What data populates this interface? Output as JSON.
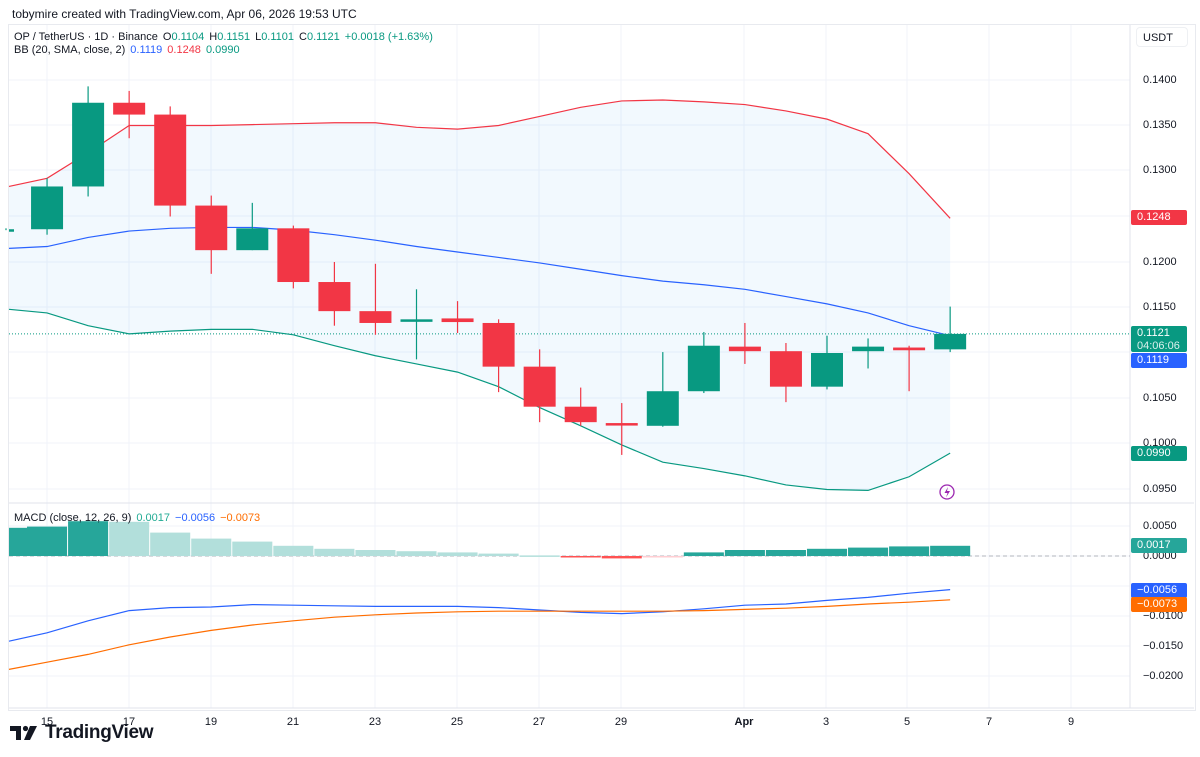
{
  "header": {
    "credit": "tobymire created with TradingView.com, Apr 06, 2026 19:53 UTC"
  },
  "legend": {
    "symbol": "OP / TetherUS · 1D · Binance",
    "o_label": "O",
    "o_value": "0.1104",
    "h_label": "H",
    "h_value": "0.1151",
    "l_label": "L",
    "l_value": "0.1101",
    "c_label": "C",
    "c_value": "0.1121",
    "change": "+0.0018 (+1.63%)",
    "bb_label": "BB (20, SMA, close, 2)",
    "bb_basis": "0.1119",
    "bb_upper": "0.1248",
    "bb_lower": "0.0990",
    "macd_label": "MACD (close, 12, 26, 9)",
    "macd_hist": "0.0017",
    "macd_line": "−0.0056",
    "macd_signal": "−0.0073"
  },
  "price_axis": {
    "currency_button": "USDT",
    "ticks": [
      "0.1400",
      "0.1350",
      "0.1300",
      "0.1200",
      "0.1150",
      "0.1050",
      "0.1000",
      "0.0950"
    ],
    "tags": {
      "upper": "0.1248",
      "last": "0.1121",
      "countdown": "04:06:06",
      "basis": "0.1119",
      "lower": "0.0990"
    }
  },
  "macd_axis": {
    "ticks": [
      "0.0050",
      "0.0000",
      "−0.0100",
      "−0.0150",
      "−0.0200"
    ],
    "tags": {
      "hist": "0.0017",
      "macd": "−0.0056",
      "signal": "−0.0073"
    }
  },
  "time_axis": {
    "labels": [
      "15",
      "17",
      "19",
      "21",
      "23",
      "25",
      "27",
      "29",
      "Apr",
      "3",
      "5",
      "7",
      "9"
    ]
  },
  "branding": {
    "logo_text": "TradingView"
  },
  "colors": {
    "up": "#089981",
    "down": "#f23645",
    "bb_basis": "#2962ff",
    "bb_upper": "#f23645",
    "bb_lower": "#089981",
    "bb_fill": "#2196f3",
    "macd": "#2962ff",
    "signal": "#ff6d00",
    "hist_pos_strong": "#26a69a",
    "hist_pos_weak": "#b2dfdb",
    "hist_neg_strong": "#ff5252",
    "hist_neg_weak": "#ffcdd2"
  },
  "chart_data": [
    {
      "type": "candlestick",
      "title": "OP / TetherUS · 1D · Binance",
      "ylabel": "USDT",
      "ylim": [
        0.093,
        0.142
      ],
      "grid": true,
      "x": [
        "Mar 14",
        "Mar 15",
        "Mar 16",
        "Mar 17",
        "Mar 18",
        "Mar 19",
        "Mar 20",
        "Mar 21",
        "Mar 22",
        "Mar 23",
        "Mar 24",
        "Mar 25",
        "Mar 26",
        "Mar 27",
        "Mar 28",
        "Mar 29",
        "Mar 30",
        "Mar 31",
        "Apr 1",
        "Apr 2",
        "Apr 3",
        "Apr 4",
        "Apr 5",
        "Apr 6"
      ],
      "open": [
        0.1236,
        0.1236,
        0.1283,
        0.1375,
        0.1362,
        0.1262,
        0.1213,
        0.1237,
        0.1178,
        0.1146,
        0.1135,
        0.1138,
        0.1133,
        0.1085,
        0.1041,
        0.1023,
        0.102,
        0.1058,
        0.1107,
        0.1102,
        0.1063,
        0.1102,
        0.1106,
        0.1104
      ],
      "high": [
        0.1237,
        0.1292,
        0.1393,
        0.1388,
        0.1371,
        0.1273,
        0.1265,
        0.124,
        0.12,
        0.1198,
        0.117,
        0.1157,
        0.1137,
        0.1104,
        0.1062,
        0.1045,
        0.1101,
        0.1123,
        0.1133,
        0.1111,
        0.1119,
        0.1116,
        0.1108,
        0.1151
      ],
      "low": [
        0.1235,
        0.123,
        0.1272,
        0.1336,
        0.125,
        0.1187,
        0.1213,
        0.1171,
        0.113,
        0.112,
        0.1093,
        0.1122,
        0.1057,
        0.1024,
        0.102,
        0.0988,
        0.1019,
        0.1056,
        0.1088,
        0.1046,
        0.106,
        0.1083,
        0.1058,
        0.1101
      ],
      "close": [
        0.1236,
        0.1283,
        0.1375,
        0.1362,
        0.1262,
        0.1213,
        0.1237,
        0.1178,
        0.1146,
        0.1133,
        0.1137,
        0.1134,
        0.1085,
        0.1041,
        0.1024,
        0.1021,
        0.1058,
        0.1108,
        0.1102,
        0.1063,
        0.11,
        0.1107,
        0.1103,
        0.1121
      ],
      "series": [
        {
          "name": "BB Upper",
          "values": [
            0.1283,
            0.1292,
            0.132,
            0.135,
            0.135,
            0.135,
            0.1351,
            0.1352,
            0.1353,
            0.1353,
            0.1348,
            0.1346,
            0.135,
            0.136,
            0.137,
            0.1377,
            0.1378,
            0.1376,
            0.1373,
            0.1366,
            0.1357,
            0.1341,
            0.1297,
            0.1248
          ]
        },
        {
          "name": "BB Basis",
          "values": [
            0.1215,
            0.1217,
            0.1227,
            0.1234,
            0.1237,
            0.1238,
            0.1238,
            0.1235,
            0.123,
            0.1224,
            0.1217,
            0.1211,
            0.1205,
            0.1199,
            0.1192,
            0.1185,
            0.1179,
            0.1175,
            0.117,
            0.1162,
            0.1154,
            0.1144,
            0.113,
            0.1119
          ]
        },
        {
          "name": "BB Lower",
          "values": [
            0.1148,
            0.1144,
            0.113,
            0.1121,
            0.1124,
            0.1126,
            0.1126,
            0.112,
            0.1108,
            0.1097,
            0.1088,
            0.1079,
            0.1063,
            0.104,
            0.102,
            0.0999,
            0.098,
            0.0973,
            0.0965,
            0.0955,
            0.095,
            0.0949,
            0.0964,
            0.099
          ]
        }
      ]
    },
    {
      "type": "bar+line",
      "title": "MACD (close, 12, 26, 9)",
      "ylim": [
        -0.0215,
        0.0075
      ],
      "grid": true,
      "x": [
        "Mar 14",
        "Mar 15",
        "Mar 16",
        "Mar 17",
        "Mar 18",
        "Mar 19",
        "Mar 20",
        "Mar 21",
        "Mar 22",
        "Mar 23",
        "Mar 24",
        "Mar 25",
        "Mar 26",
        "Mar 27",
        "Mar 28",
        "Mar 29",
        "Mar 30",
        "Mar 31",
        "Apr 1",
        "Apr 2",
        "Apr 3",
        "Apr 4",
        "Apr 5",
        "Apr 6"
      ],
      "series": [
        {
          "name": "Histogram",
          "values": [
            0.0047,
            0.0049,
            0.0058,
            0.0057,
            0.0039,
            0.0029,
            0.0024,
            0.0017,
            0.0012,
            0.001,
            0.0008,
            0.0006,
            0.0004,
            0.0001,
            -0.0002,
            -0.0004,
            -0.0001,
            0.0006,
            0.001,
            0.001,
            0.0012,
            0.0014,
            0.0016,
            0.0017
          ]
        },
        {
          "name": "MACD",
          "values": [
            -0.0142,
            -0.0128,
            -0.0108,
            -0.0091,
            -0.0086,
            -0.0085,
            -0.0081,
            -0.0082,
            -0.0083,
            -0.0084,
            -0.0084,
            -0.0084,
            -0.0086,
            -0.009,
            -0.0094,
            -0.0096,
            -0.0093,
            -0.0088,
            -0.0082,
            -0.008,
            -0.0074,
            -0.0069,
            -0.0062,
            -0.0056
          ]
        },
        {
          "name": "Signal",
          "values": [
            -0.0189,
            -0.0177,
            -0.0164,
            -0.0148,
            -0.0135,
            -0.0124,
            -0.0115,
            -0.0108,
            -0.0102,
            -0.0098,
            -0.0095,
            -0.0093,
            -0.0092,
            -0.0092,
            -0.0092,
            -0.0092,
            -0.0092,
            -0.0091,
            -0.0089,
            -0.0087,
            -0.0084,
            -0.008,
            -0.0077,
            -0.0073
          ]
        }
      ]
    }
  ]
}
